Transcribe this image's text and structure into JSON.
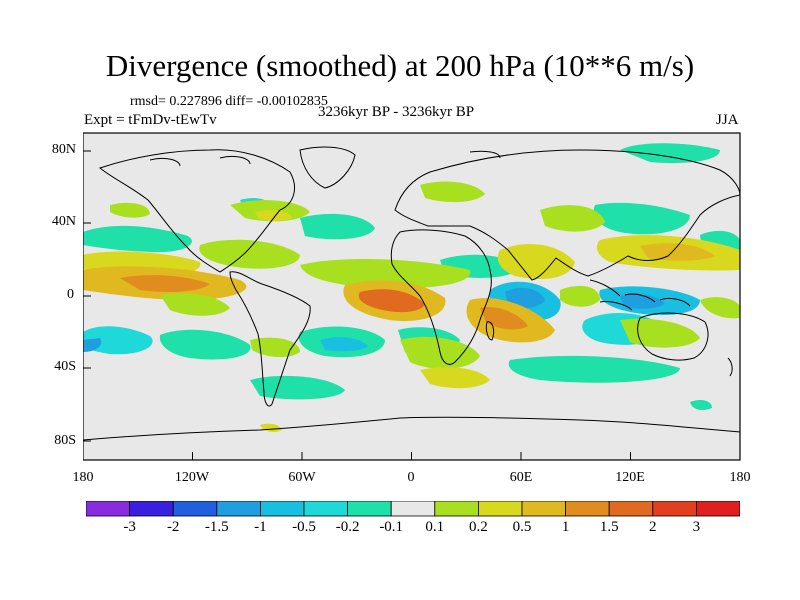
{
  "header": {
    "title": "Divergence (smoothed) at 200 hPa (10**6 m/s)",
    "stats": "rmsd= 0.227896  diff= -0.00102835",
    "experiment": "Expt = tFmDv-tEwTv",
    "period": "3236kyr BP - 3236kyr BP",
    "season": "JJA"
  },
  "axes": {
    "y_labels": [
      "80N",
      "40N",
      "0",
      "40S",
      "80S"
    ],
    "x_labels": [
      "180",
      "120W",
      "60W",
      "0",
      "60E",
      "120E",
      "180"
    ]
  },
  "colorbar": {
    "labels": [
      "-3",
      "-2",
      "-1.5",
      "-1",
      "-0.5",
      "-0.2",
      "-0.1",
      "0.1",
      "0.2",
      "0.5",
      "1",
      "1.5",
      "2",
      "3"
    ],
    "colors": [
      "#8a2be2",
      "#3a1fe0",
      "#1f5fe0",
      "#1f9ee0",
      "#19bfe0",
      "#1fd8d8",
      "#1fe0a8",
      "#e8e8e8",
      "#a8e01f",
      "#d8d81f",
      "#e0b81f",
      "#e08c1f",
      "#e06a1f",
      "#e0401f",
      "#e01f1f"
    ]
  },
  "palette": {
    "background": "#e8e8e8",
    "coastline": "#000000"
  }
}
